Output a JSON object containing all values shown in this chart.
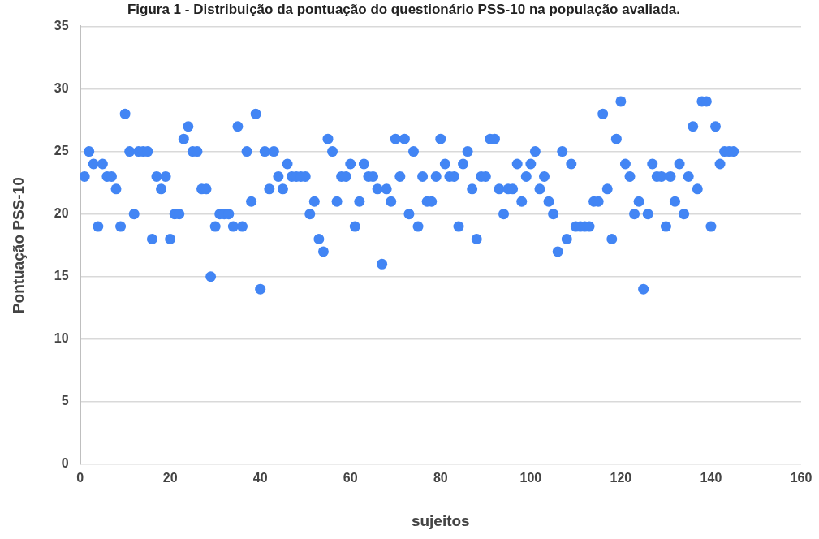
{
  "chart_data": {
    "type": "scatter",
    "title": "Figura 1 - Distribuição da pontuação do questionário PSS-10 na população avaliada.",
    "xlabel": "sujeitos",
    "ylabel": "Pontuação PSS-10",
    "x": [
      1,
      2,
      3,
      4,
      5,
      6,
      7,
      8,
      9,
      10,
      11,
      12,
      13,
      14,
      15,
      16,
      17,
      18,
      19,
      20,
      21,
      22,
      23,
      24,
      25,
      26,
      27,
      28,
      29,
      30,
      31,
      32,
      33,
      34,
      35,
      36,
      37,
      38,
      39,
      40,
      41,
      42,
      43,
      44,
      45,
      46,
      47,
      48,
      49,
      50,
      51,
      52,
      53,
      54,
      55,
      56,
      57,
      58,
      59,
      60,
      61,
      62,
      63,
      64,
      65,
      66,
      67,
      68,
      69,
      70,
      71,
      72,
      73,
      74,
      75,
      76,
      77,
      78,
      79,
      80,
      81,
      82,
      83,
      84,
      85,
      86,
      87,
      88,
      89,
      90,
      91,
      92,
      93,
      94,
      95,
      96,
      97,
      98,
      99,
      100,
      101,
      102,
      103,
      104,
      105,
      106,
      107,
      108,
      109,
      110,
      111,
      112,
      113,
      114,
      115,
      116,
      117,
      118,
      119,
      120,
      121,
      122,
      123,
      124,
      125,
      126,
      127,
      128,
      129,
      130,
      131,
      132,
      133,
      134,
      135,
      136,
      137,
      138,
      139,
      140,
      141,
      142,
      143,
      144,
      145
    ],
    "series": [
      {
        "color": "#4285f4",
        "values": [
          23,
          25,
          24,
          19,
          24,
          23,
          23,
          22,
          19,
          28,
          25,
          20,
          25,
          25,
          25,
          18,
          23,
          22,
          23,
          18,
          20,
          20,
          26,
          27,
          25,
          25,
          22,
          22,
          15,
          19,
          20,
          20,
          20,
          19,
          27,
          19,
          25,
          21,
          28,
          14,
          25,
          22,
          25,
          23,
          22,
          24,
          23,
          23,
          23,
          23,
          20,
          21,
          18,
          17,
          26,
          25,
          21,
          23,
          23,
          24,
          19,
          21,
          24,
          23,
          23,
          22,
          16,
          22,
          21,
          26,
          23,
          26,
          20,
          25,
          19,
          23,
          21,
          21,
          23,
          26,
          24,
          23,
          23,
          19,
          24,
          25,
          22,
          18,
          23,
          23,
          26,
          26,
          22,
          20,
          22,
          22,
          24,
          21,
          23,
          24,
          25,
          22,
          23,
          21,
          20,
          17,
          25,
          18,
          24,
          19,
          19,
          19,
          19,
          21,
          21,
          28,
          22,
          18,
          26,
          29,
          24,
          23,
          20,
          21,
          14,
          20,
          24,
          23,
          23,
          19,
          23,
          21,
          24,
          20,
          23,
          27,
          22,
          29,
          29,
          19,
          27,
          24,
          25,
          25,
          25
        ]
      }
    ],
    "xlim": [
      0,
      160
    ],
    "xticks": [
      0,
      20,
      40,
      60,
      80,
      100,
      120,
      140,
      160
    ],
    "ylim": [
      0,
      35
    ],
    "yticks": [
      0,
      5,
      10,
      15,
      20,
      25,
      30,
      35
    ],
    "grid": "y",
    "legend": false,
    "marker": "circle"
  }
}
